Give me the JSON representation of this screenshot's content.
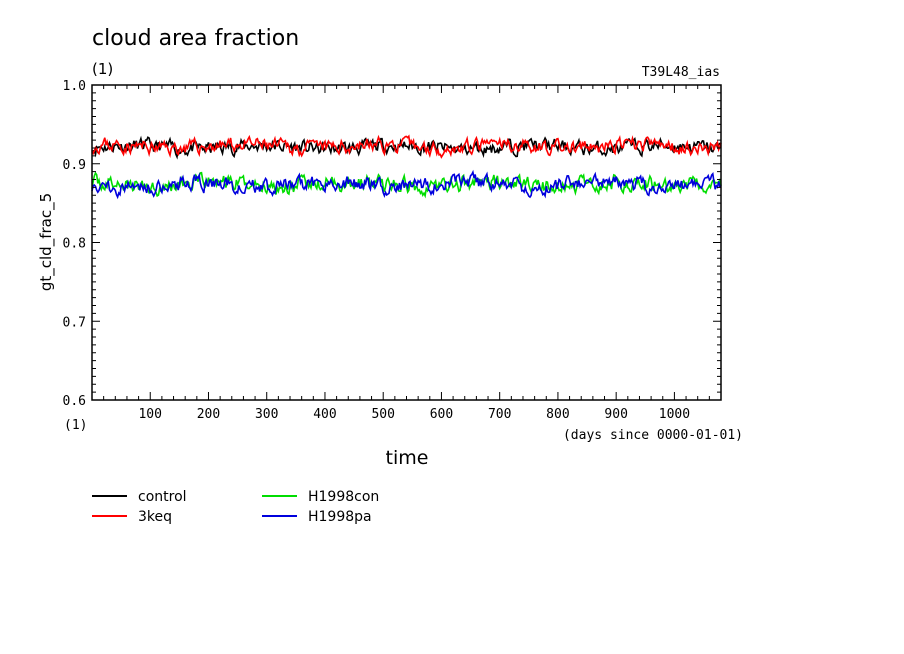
{
  "chart_data": {
    "type": "line",
    "title": "cloud area fraction",
    "units": "(1)",
    "experiment": "T39L48_ias",
    "xlabel": "time",
    "xunits": "(days since 0000-01-01)",
    "ylabel": "gt_cld_frac_5",
    "yunits": "(1)",
    "xlim": [
      0,
      1080
    ],
    "ylim": [
      0.6,
      1.0
    ],
    "x_ticks": [
      100,
      200,
      300,
      400,
      500,
      600,
      700,
      800,
      900,
      1000
    ],
    "y_ticks": [
      "0.6",
      "0.7",
      "0.8",
      "0.9",
      "1.0"
    ],
    "grid": false,
    "legend_position": "bottom-left",
    "series": [
      {
        "name": "control",
        "color": "#000000",
        "mean": 0.921,
        "amplitude": 0.009,
        "seed": 11
      },
      {
        "name": "3keq",
        "color": "#ff0000",
        "mean": 0.922,
        "amplitude": 0.009,
        "seed": 23
      },
      {
        "name": "H1998con",
        "color": "#00dd00",
        "mean": 0.874,
        "amplitude": 0.01,
        "seed": 37
      },
      {
        "name": "H1998pa",
        "color": "#0000dd",
        "mean": 0.873,
        "amplitude": 0.01,
        "seed": 51
      }
    ]
  }
}
